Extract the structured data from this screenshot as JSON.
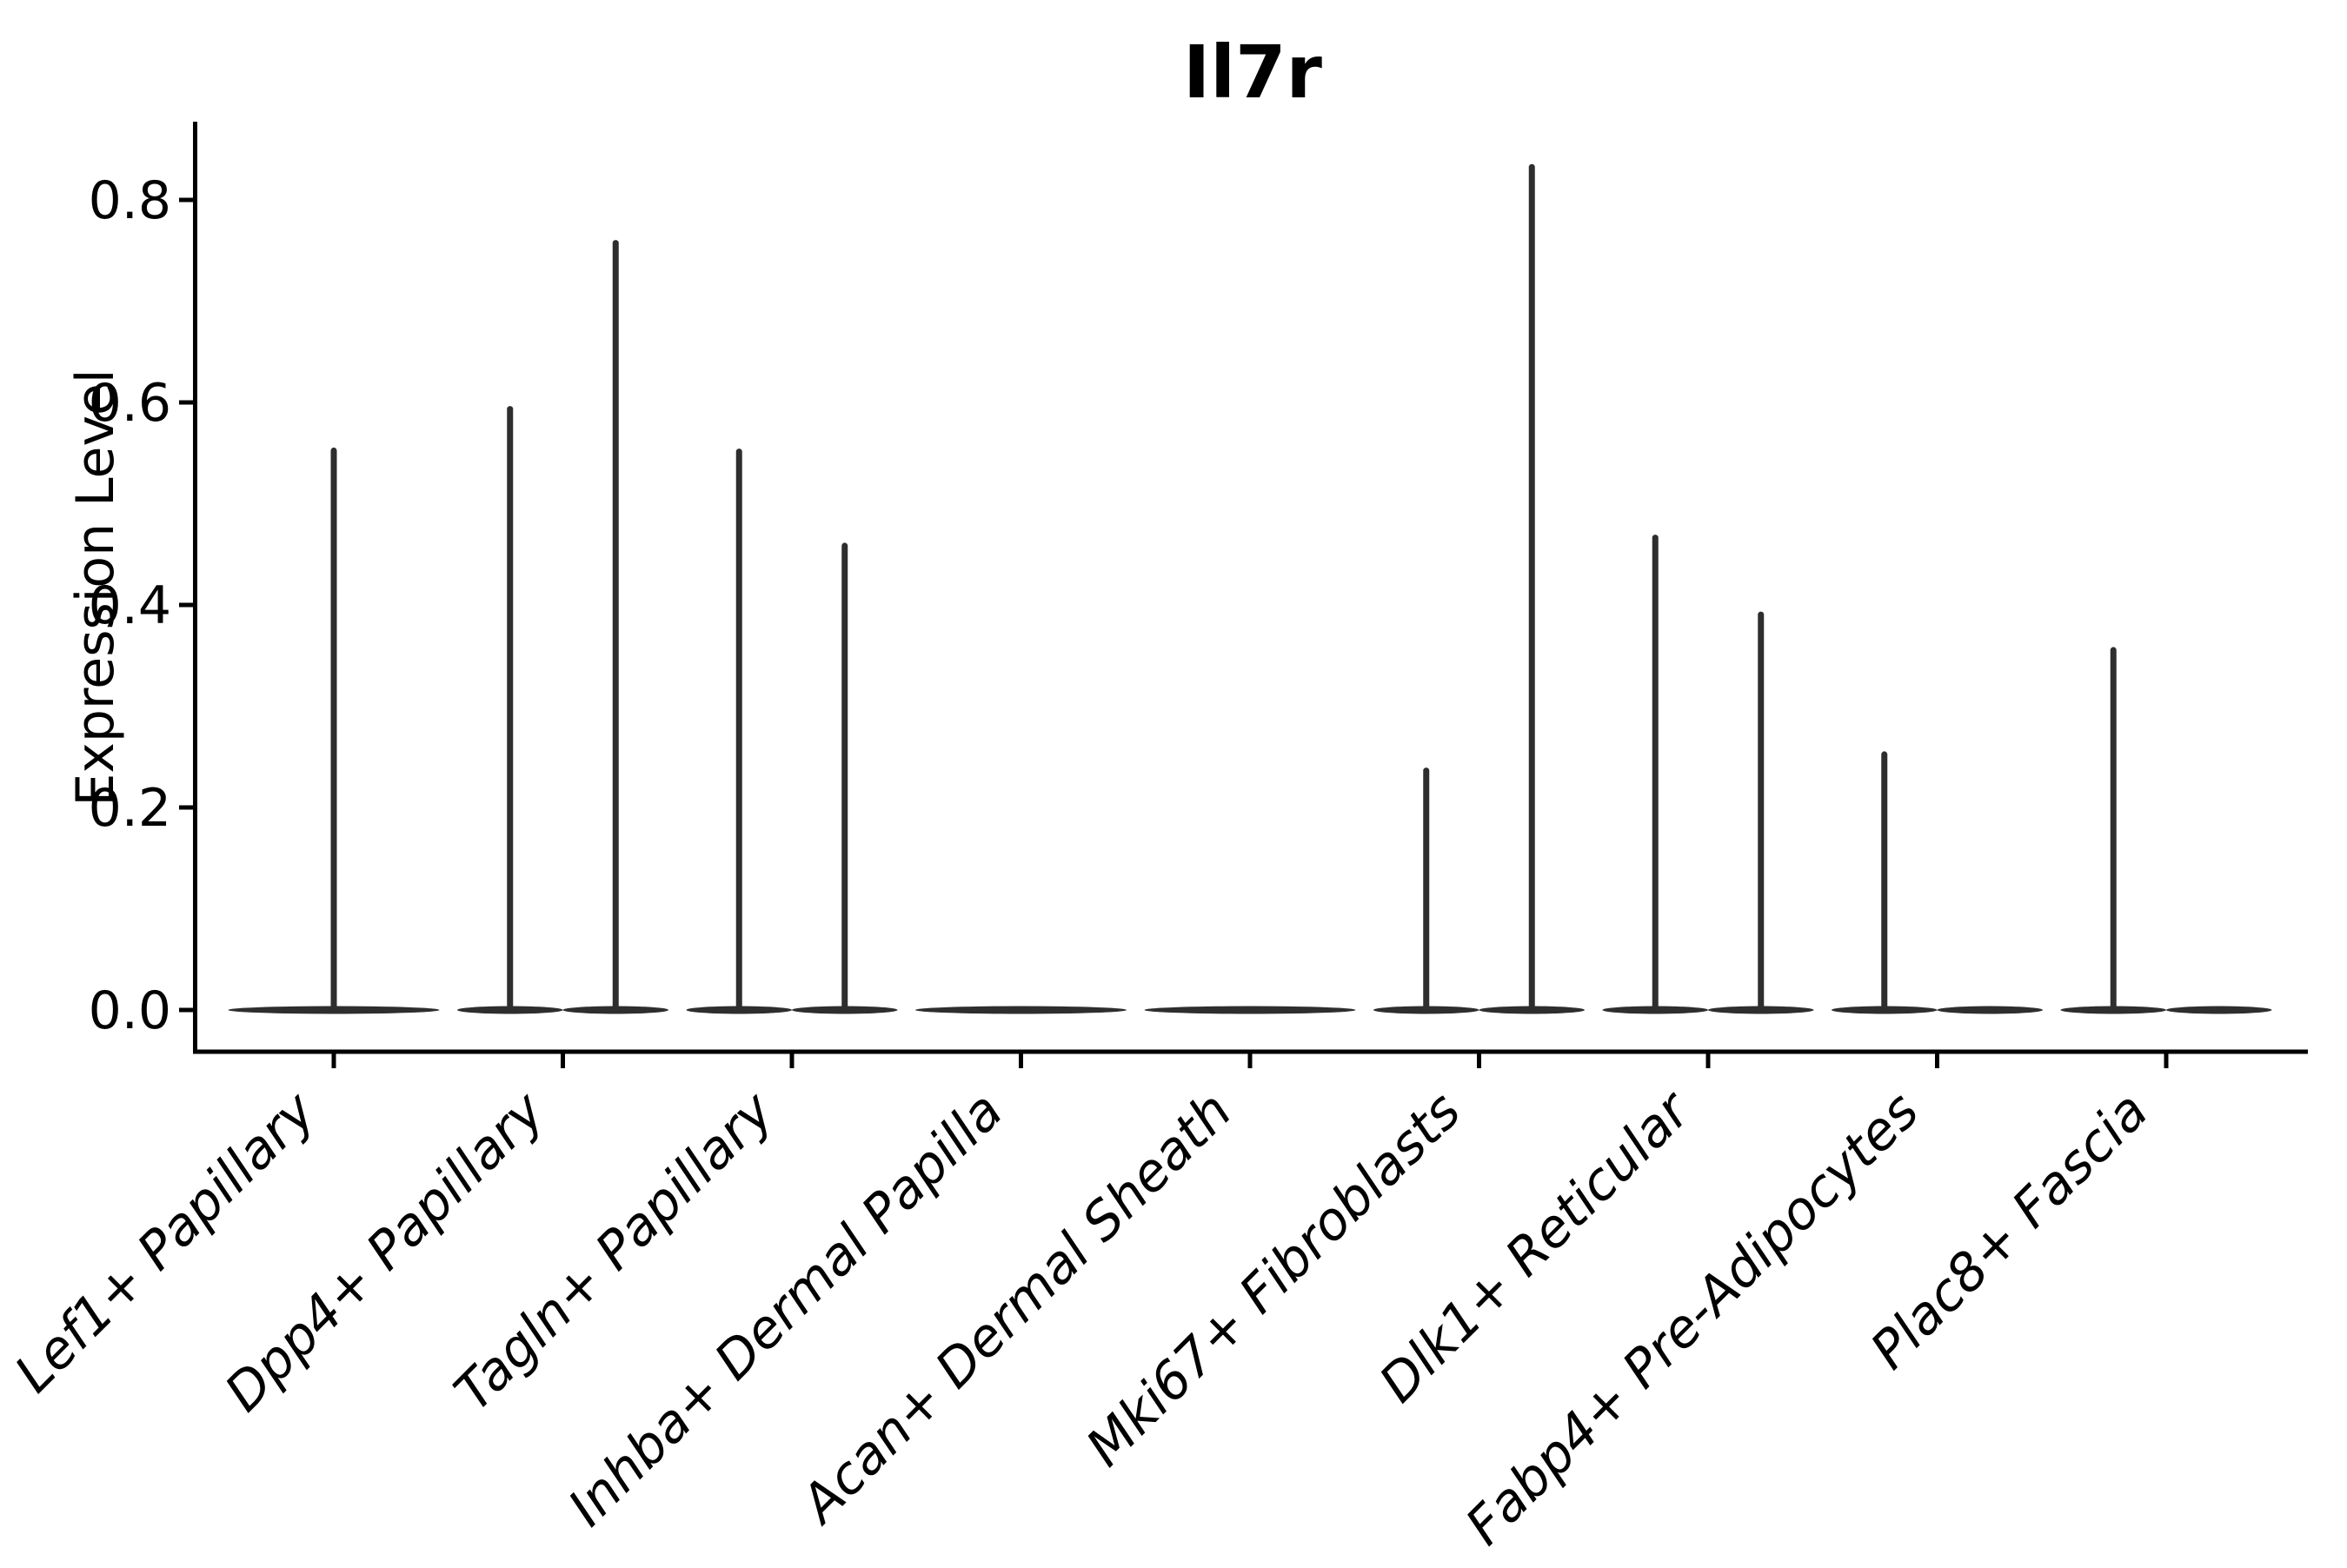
{
  "page": {
    "background": "#ffffff"
  },
  "chart_data": {
    "type": "violin",
    "title": "Il7r",
    "xlabel": "",
    "ylabel": "Expression Level",
    "ylim": [
      -0.041,
      0.877
    ],
    "y_ticks": [
      "0.0",
      "0.2",
      "0.4",
      "0.6",
      "0.8"
    ],
    "y_tick_values": [
      0.0,
      0.2,
      0.4,
      0.6,
      0.8
    ],
    "grid": false,
    "legend": "none",
    "categories": [
      "Lef1+ Papillary",
      "Dpp4+ Papillary",
      "Tagln+ Papillary",
      "Inhba+ Dermal Papilla",
      "Acan+ Dermal Sheath",
      "Mki67+ Fibroblasts",
      "Dlk1+ Reticular",
      "Fabp4+ Pre-Adipocytes",
      "Plac8+ Fascia"
    ],
    "violins": [
      {
        "category": "Lef1+ Papillary",
        "tails": [
          {
            "pos": "center",
            "max": 0.555
          }
        ]
      },
      {
        "category": "Dpp4+ Papillary",
        "tails": [
          {
            "pos": "left",
            "max": 0.596
          },
          {
            "pos": "right",
            "max": 0.76
          }
        ]
      },
      {
        "category": "Tagln+ Papillary",
        "tails": [
          {
            "pos": "left",
            "max": 0.554
          },
          {
            "pos": "right",
            "max": 0.461
          }
        ]
      },
      {
        "category": "Inhba+ Dermal Papilla",
        "tails": []
      },
      {
        "category": "Acan+ Dermal Sheath",
        "tails": []
      },
      {
        "category": "Mki67+ Fibroblasts",
        "tails": [
          {
            "pos": "left",
            "max": 0.239
          },
          {
            "pos": "right",
            "max": 0.835
          }
        ]
      },
      {
        "category": "Dlk1+ Reticular",
        "tails": [
          {
            "pos": "left",
            "max": 0.469
          },
          {
            "pos": "right",
            "max": 0.393
          }
        ]
      },
      {
        "category": "Fabp4+ Pre-Adipocytes",
        "tails": [
          {
            "pos": "left",
            "max": 0.255
          }
        ]
      },
      {
        "category": "Plac8+ Fascia",
        "tails": [
          {
            "pos": "left",
            "max": 0.358
          }
        ]
      }
    ],
    "description": "Violin plot of Il7r expression per fibroblast cluster; each violin is a flat density mass at 0 with a thin tail spike rising to its maximum expression value."
  },
  "style": {
    "ink": "#2e2e2e",
    "axis_color": "#000000",
    "text_color": "#000000"
  }
}
